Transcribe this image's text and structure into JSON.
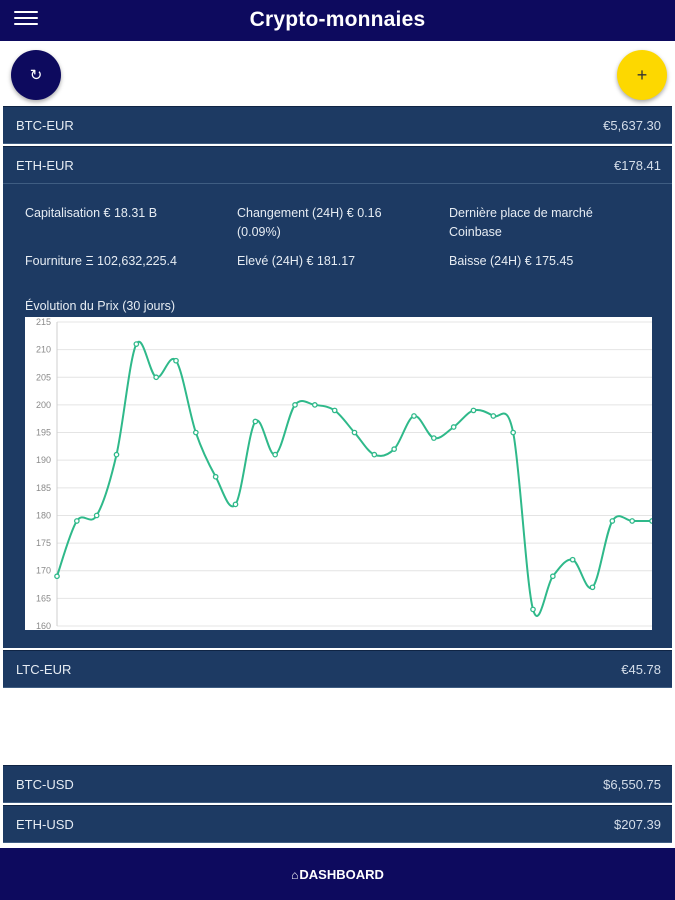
{
  "header": {
    "title": "Crypto-monnaies",
    "menu_icon": "hamburger-menu-icon"
  },
  "actions": {
    "refresh_icon": "↻",
    "add_icon": "+"
  },
  "pairs": [
    {
      "pair": "BTC-EUR",
      "price": "€5,637.30"
    },
    {
      "pair": "ETH-EUR",
      "price": "€178.41"
    },
    {
      "pair": "LTC-EUR",
      "price": "€45.78"
    },
    {
      "pair": "BTC-USD",
      "price": "$6,550.75"
    },
    {
      "pair": "ETH-USD",
      "price": "$207.39"
    }
  ],
  "details": {
    "market_cap": "Capitalisation € 18.31 B",
    "change_line1": "Changement (24H) € 0.16",
    "change_line2": "(0.09%)",
    "last_market_label": "Dernière place de marché",
    "last_market_value": "Coinbase",
    "supply": "Fourniture Ξ 102,632,225.4",
    "high": "Elevé (24H) € 181.17",
    "low": "Baisse (24H) € 175.45",
    "chart_title": "Évolution du Prix (30 jours)"
  },
  "chart_data": {
    "type": "line",
    "title": "Évolution du Prix (30 jours)",
    "xlabel": "",
    "ylabel": "",
    "ylim": [
      160,
      215
    ],
    "yticks": [
      160,
      165,
      170,
      175,
      180,
      185,
      190,
      195,
      200,
      205,
      210,
      215
    ],
    "grid": true,
    "legend": "none",
    "color": "#2fb98a",
    "series": [
      {
        "values": [
          169,
          179,
          180,
          191,
          211,
          205,
          208,
          195,
          187,
          182,
          197,
          191,
          200,
          200,
          199,
          195,
          191,
          192,
          198,
          194,
          196,
          199,
          198,
          195,
          163,
          169,
          172,
          167,
          179,
          179,
          179
        ]
      }
    ]
  },
  "footer": {
    "nav_label": "DASHBOARD",
    "nav_icon": "home-icon"
  }
}
